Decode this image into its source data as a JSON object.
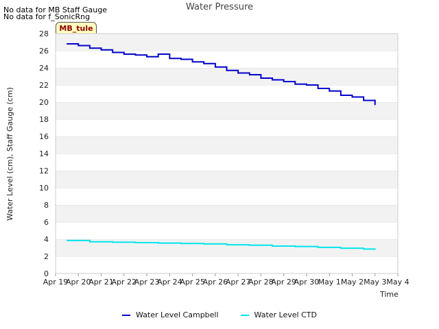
{
  "notes": [
    "No data for MB Staff Gauge",
    "No data for f_SonicRng"
  ],
  "badge": "MB_tule",
  "chart_data": {
    "type": "line",
    "title": "Water Pressure",
    "xlabel": "Time",
    "ylabel": "Water Level (cm), Staff Gauge (cm)",
    "ylim": [
      0,
      28
    ],
    "yticks": [
      0,
      2,
      4,
      6,
      8,
      10,
      12,
      14,
      16,
      18,
      20,
      22,
      24,
      26,
      28
    ],
    "x_tick_labels": [
      "Apr 19",
      "Apr 20",
      "Apr 21",
      "Apr 22",
      "Apr 23",
      "Apr 24",
      "Apr 25",
      "Apr 26",
      "Apr 27",
      "Apr 28",
      "Apr 29",
      "Apr 30",
      "May 1",
      "May 2",
      "May 3",
      "May 4"
    ],
    "grid": "alternating horizontal bands",
    "legend_position": "bottom",
    "series": [
      {
        "name": "Water Level Campbell",
        "color": "#0000cc",
        "x": [
          "Apr 19 12:00",
          "Apr 20 00:00",
          "Apr 20 12:00",
          "Apr 21 00:00",
          "Apr 21 12:00",
          "Apr 22 00:00",
          "Apr 22 12:00",
          "Apr 23 00:00",
          "Apr 23 12:00",
          "Apr 24 00:00",
          "Apr 24 12:00",
          "Apr 25 00:00",
          "Apr 25 12:00",
          "Apr 26 00:00",
          "Apr 26 12:00",
          "Apr 27 00:00",
          "Apr 27 12:00",
          "Apr 28 00:00",
          "Apr 28 12:00",
          "Apr 29 00:00",
          "Apr 29 12:00",
          "Apr 30 00:00",
          "Apr 30 12:00",
          "May 1 00:00",
          "May 1 12:00",
          "May 2 00:00",
          "May 2 12:00",
          "May 3 00:00"
        ],
        "values": [
          26.8,
          26.6,
          26.3,
          26.1,
          25.8,
          25.6,
          25.5,
          25.3,
          25.6,
          25.1,
          25.0,
          24.7,
          24.5,
          24.1,
          23.7,
          23.4,
          23.2,
          22.8,
          22.6,
          22.4,
          22.1,
          22.0,
          21.6,
          21.3,
          20.8,
          20.6,
          20.2,
          19.7
        ]
      },
      {
        "name": "Water Level CTD",
        "color": "#00e5ee",
        "x": [
          "Apr 19 12:00",
          "Apr 20 12:00",
          "Apr 21 12:00",
          "Apr 22 12:00",
          "Apr 23 12:00",
          "Apr 24 12:00",
          "Apr 25 12:00",
          "Apr 26 12:00",
          "Apr 27 12:00",
          "Apr 28 12:00",
          "Apr 29 12:00",
          "Apr 30 12:00",
          "May 1 12:00",
          "May 2 12:00",
          "May 3 00:00"
        ],
        "values": [
          3.85,
          3.7,
          3.65,
          3.6,
          3.55,
          3.5,
          3.45,
          3.35,
          3.3,
          3.2,
          3.15,
          3.05,
          2.95,
          2.85,
          2.8
        ]
      }
    ]
  }
}
